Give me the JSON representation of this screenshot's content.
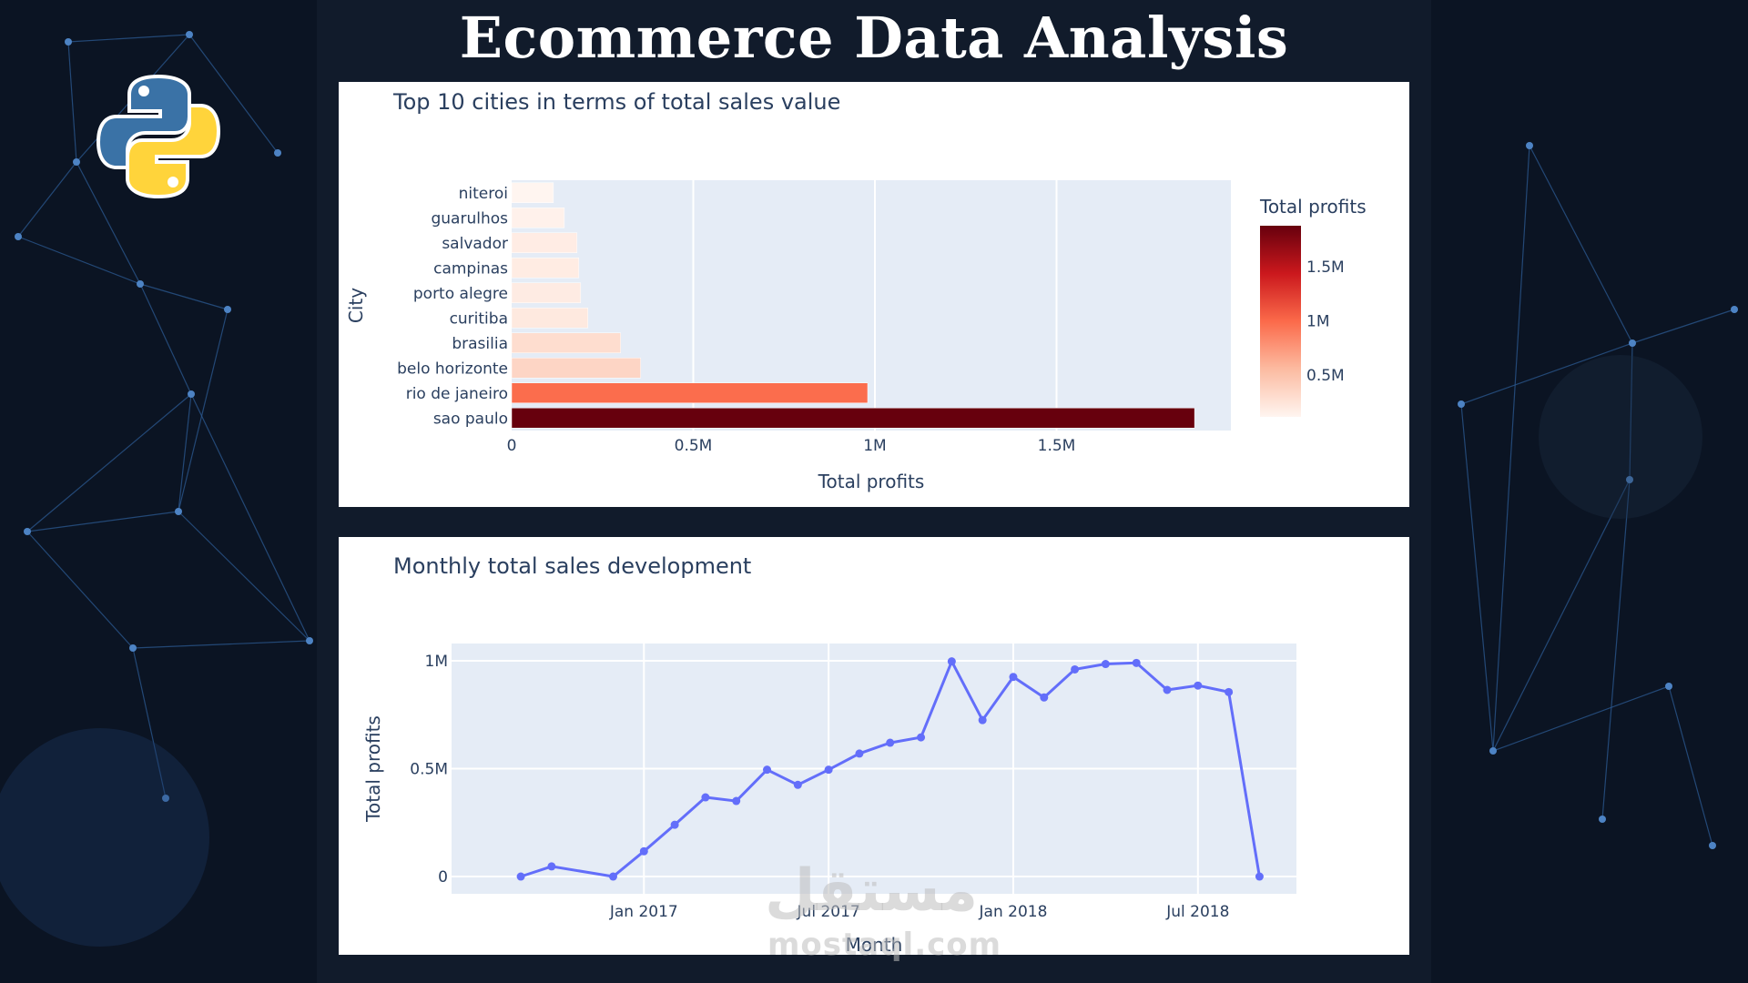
{
  "page": {
    "title": "Ecommerce Data Analysis",
    "logo": "python-logo",
    "watermark_ar": "مستقل",
    "watermark_en": "mostaql.com"
  },
  "colors": {
    "background": "#0b1423",
    "panel": "#111b2b",
    "plot_bg": "#e5ecf6",
    "line": "#636efa",
    "colorscale": [
      "#fff5f0",
      "#fcbba1",
      "#fb6a4a",
      "#cb181d",
      "#67000d"
    ]
  },
  "chart_data": [
    {
      "type": "bar",
      "orientation": "horizontal",
      "title": "Top 10 cities in terms of total sales value",
      "xlabel": "Total profits",
      "ylabel": "City",
      "categories": [
        "niteroi",
        "guarulhos",
        "salvador",
        "campinas",
        "porto alegre",
        "curitiba",
        "brasilia",
        "belo horizonte",
        "rio de janeiro",
        "sao paulo"
      ],
      "values": [
        115000,
        145000,
        180000,
        185000,
        190000,
        210000,
        300000,
        355000,
        980000,
        1880000
      ],
      "xlim": [
        0,
        1980000
      ],
      "xticks": [
        {
          "value": 0,
          "label": "0"
        },
        {
          "value": 500000,
          "label": "0.5M"
        },
        {
          "value": 1000000,
          "label": "1M"
        },
        {
          "value": 1500000,
          "label": "1.5M"
        }
      ],
      "grid": true,
      "colorbar": {
        "title": "Total profits",
        "range": [
          115000,
          1880000
        ],
        "ticks": [
          {
            "value": 500000,
            "label": "0.5M"
          },
          {
            "value": 1000000,
            "label": "1M"
          },
          {
            "value": 1500000,
            "label": "1.5M"
          }
        ]
      }
    },
    {
      "type": "line",
      "title": "Monthly total sales development",
      "xlabel": "Month",
      "ylabel": "Total profits",
      "x": [
        "2016-09",
        "2016-10",
        "2016-12",
        "2017-01",
        "2017-02",
        "2017-03",
        "2017-04",
        "2017-05",
        "2017-06",
        "2017-07",
        "2017-08",
        "2017-09",
        "2017-10",
        "2017-11",
        "2017-12",
        "2018-01",
        "2018-02",
        "2018-03",
        "2018-04",
        "2018-05",
        "2018-06",
        "2018-07",
        "2018-08",
        "2018-09"
      ],
      "y": [
        0,
        47000,
        0,
        117000,
        240000,
        367000,
        350000,
        495000,
        425000,
        495000,
        570000,
        620000,
        645000,
        997000,
        725000,
        925000,
        830000,
        960000,
        985000,
        990000,
        865000,
        885000,
        855000,
        0
      ],
      "ylim": [
        -80000,
        1080000
      ],
      "yticks": [
        {
          "value": 0,
          "label": "0"
        },
        {
          "value": 500000,
          "label": "0.5M"
        },
        {
          "value": 1000000,
          "label": "1M"
        }
      ],
      "xticks": [
        {
          "value": "2017-01",
          "label": "Jan 2017"
        },
        {
          "value": "2017-07",
          "label": "Jul 2017"
        },
        {
          "value": "2018-01",
          "label": "Jan 2018"
        },
        {
          "value": "2018-07",
          "label": "Jul 2018"
        }
      ],
      "grid": true
    }
  ]
}
